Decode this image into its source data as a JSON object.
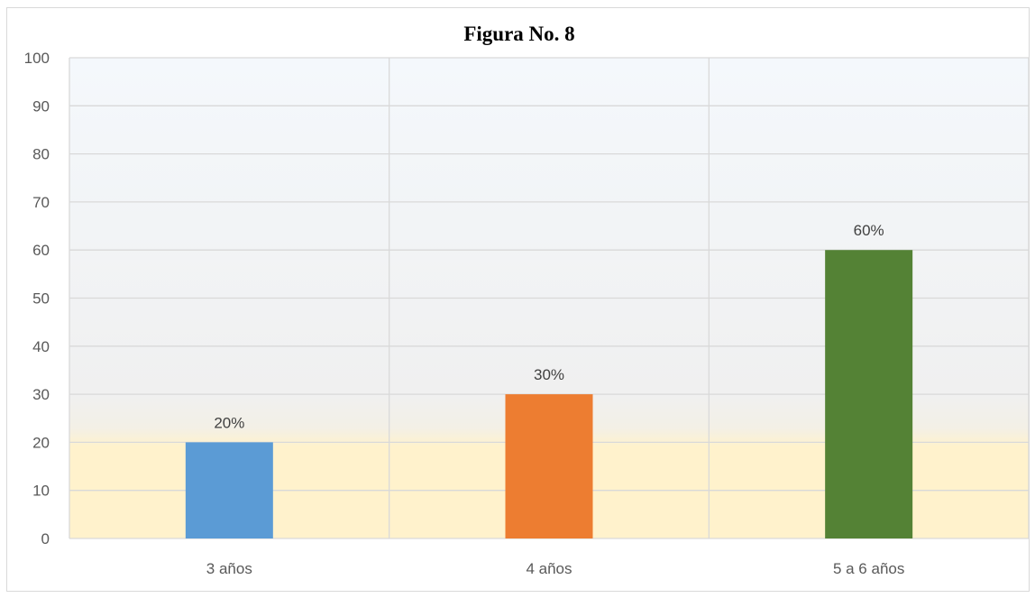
{
  "chart_data": {
    "type": "bar",
    "title": "Figura No. 8",
    "categories": [
      "3 años",
      "4 años",
      "5 a 6 años"
    ],
    "values": [
      20,
      30,
      60
    ],
    "data_labels": [
      "20%",
      "30%",
      "60%"
    ],
    "colors": [
      "#5b9bd5",
      "#ed7d31",
      "#548235"
    ],
    "ylim": [
      0,
      100
    ],
    "y_ticks": [
      "0",
      "10",
      "20",
      "30",
      "40",
      "50",
      "60",
      "70",
      "80",
      "90",
      "100"
    ],
    "grid": true,
    "legend": "none",
    "background_colors": {
      "top": "#f4f8fc",
      "middle": "#f0f0f0",
      "bottom": "#fff2cc"
    }
  }
}
